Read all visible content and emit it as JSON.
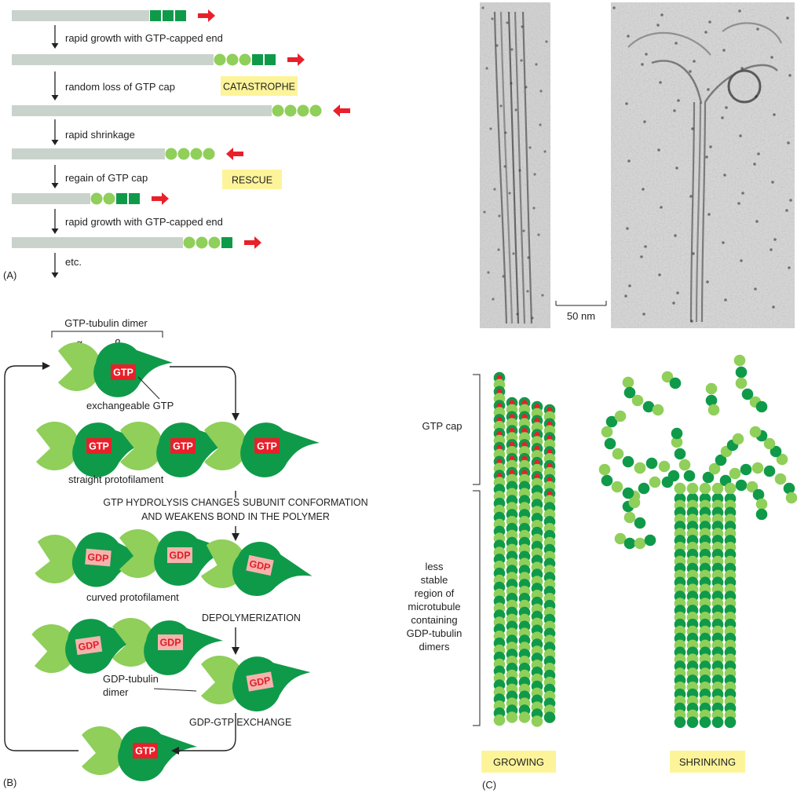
{
  "colors": {
    "gdp_lattice": "#c9d3cc",
    "gtp_subunit_dark": "#0f9a4a",
    "gdp_subunit_light": "#8fcf5a",
    "gtp_tag": "#e8202a",
    "gdp_tag": "#f5b3ae",
    "gdp_tag_text": "#e01e26",
    "arrow_red": "#e8202a",
    "label_box": "#fdf49a",
    "em_background": "#d3d3d3"
  },
  "panel_a": {
    "label": "(A)",
    "steps": [
      "rapid growth with GTP-capped end",
      "random loss of GTP cap",
      "rapid shrinkage",
      "regain of GTP cap",
      "rapid growth with GTP-capped end",
      "etc."
    ],
    "catastrophe_label": "CATASTROPHE",
    "rescue_label": "RESCUE"
  },
  "micrograph": {
    "scale_label": "50 nm"
  },
  "panel_b": {
    "label": "(B)",
    "dimer_title": "GTP-tubulin dimer",
    "alpha": "α",
    "beta": "β",
    "gtp": "GTP",
    "gdp": "GDP",
    "exchangeable_gtp": "exchangeable GTP",
    "straight_protofilament": "straight protofilament",
    "hydrolysis_line1": "GTP HYDROLYSIS CHANGES SUBUNIT CONFORMATION",
    "hydrolysis_line2": "AND WEAKENS BOND IN THE POLYMER",
    "curved_protofilament": "curved protofilament",
    "depolymerization": "DEPOLYMERIZATION",
    "gdp_dimer_line1": "GDP-tubulin",
    "gdp_dimer_line2": "dimer",
    "exchange": "GDP-GTP EXCHANGE"
  },
  "panel_c": {
    "label": "(C)",
    "gtp_cap": "GTP cap",
    "less_stable": [
      "less",
      "stable",
      "region of",
      "microtubule",
      "containing",
      "GDP-tubulin",
      "dimers"
    ],
    "growing": "GROWING",
    "shrinking": "SHRINKING"
  }
}
